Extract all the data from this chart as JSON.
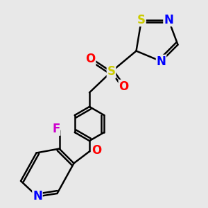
{
  "background_color": "#e8e8e8",
  "bond_color": "#000000",
  "bond_width": 1.8,
  "atom_colors": {
    "S": "#cccc00",
    "N": "#0000ff",
    "O": "#ff0000",
    "F": "#cc00cc",
    "C": "#000000"
  },
  "font_size_atoms": 12
}
